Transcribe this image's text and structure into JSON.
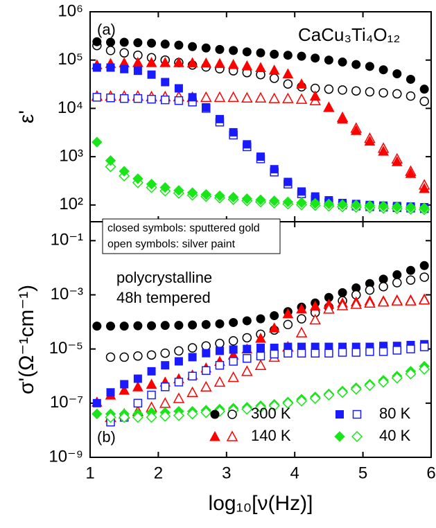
{
  "chart_data": [
    {
      "type": "scatter",
      "panel_label": "(a)",
      "annotations": [
        "CaCu₃Ti₄O₁₂"
      ],
      "ylabel": "ε'",
      "ylog": true,
      "xlim": [
        1,
        6
      ],
      "xticks": [
        1,
        2,
        3,
        4,
        5,
        6
      ],
      "ylim": [
        45,
        1000000
      ],
      "yticks": [
        {
          "value": 100,
          "label": "10²"
        },
        {
          "value": 1000,
          "label": "10³"
        },
        {
          "value": 10000,
          "label": "10⁴"
        },
        {
          "value": 100000,
          "label": "10⁵"
        },
        {
          "value": 1000000,
          "label": "10⁶"
        }
      ],
      "x": [
        1.1,
        1.3,
        1.5,
        1.7,
        1.9,
        2.1,
        2.3,
        2.5,
        2.7,
        2.9,
        3.1,
        3.3,
        3.5,
        3.7,
        3.9,
        4.1,
        4.3,
        4.5,
        4.7,
        4.9,
        5.1,
        5.3,
        5.5,
        5.7,
        5.9
      ],
      "series": [
        {
          "color": "#000000",
          "marker": "circle",
          "fill": "open",
          "values": [
            200000,
            158000,
            141000,
            126000,
            112000,
            100000,
            89000,
            79000,
            72000,
            66000,
            60000,
            55000,
            50000,
            42000,
            32000,
            28000,
            26000,
            25000,
            24000,
            23000,
            22000,
            21000,
            20000,
            18000,
            14000
          ]
        },
        {
          "color": "#000000",
          "marker": "circle",
          "fill": "closed",
          "values": [
            240000,
            234000,
            234000,
            229000,
            224000,
            214000,
            204000,
            190000,
            178000,
            166000,
            158000,
            148000,
            141000,
            132000,
            126000,
            120000,
            110000,
            100000,
            91000,
            81000,
            74000,
            63000,
            52000,
            40000,
            25000
          ]
        },
        {
          "color": "#ff0000",
          "marker": "triangle",
          "fill": "open",
          "values": [
            18000,
            18000,
            18000,
            18000,
            17500,
            17500,
            17500,
            17000,
            17000,
            17000,
            17000,
            16500,
            16500,
            16000,
            16000,
            15500,
            14500,
            10500,
            6500,
            3900,
            2400,
            1500,
            900,
            500,
            260
          ]
        },
        {
          "color": "#ff0000",
          "marker": "triangle",
          "fill": "closed",
          "values": [
            80000,
            85000,
            88000,
            89000,
            89000,
            89000,
            89000,
            88000,
            87000,
            85000,
            81000,
            76000,
            70000,
            62000,
            52000,
            32000,
            18000,
            10500,
            6000,
            3500,
            2100,
            1300,
            790,
            450,
            220
          ]
        },
        {
          "color": "#1a1aff",
          "marker": "square",
          "fill": "open",
          "values": [
            17000,
            16500,
            16000,
            16000,
            15500,
            15000,
            14500,
            13500,
            10000,
            5200,
            2800,
            1600,
            900,
            480,
            270,
            170,
            130,
            110,
            100,
            95,
            92,
            90,
            88,
            86,
            84
          ]
        },
        {
          "color": "#1a1aff",
          "marker": "square",
          "fill": "closed",
          "values": [
            70000,
            70000,
            65000,
            60000,
            50000,
            35000,
            26000,
            17000,
            10500,
            6000,
            3200,
            1800,
            1000,
            550,
            300,
            190,
            150,
            125,
            110,
            105,
            100,
            97,
            95,
            93,
            90
          ]
        },
        {
          "color": "#19e619",
          "marker": "diamond",
          "fill": "open",
          "values": [
            null,
            620,
            400,
            290,
            230,
            195,
            175,
            160,
            150,
            140,
            130,
            122,
            116,
            110,
            105,
            101,
            98,
            95,
            92,
            90,
            88,
            86,
            84,
            82,
            80
          ]
        },
        {
          "color": "#19e619",
          "marker": "diamond",
          "fill": "closed",
          "values": [
            2000,
            830,
            500,
            350,
            270,
            230,
            200,
            180,
            165,
            155,
            145,
            135,
            128,
            122,
            116,
            112,
            108,
            105,
            102,
            100,
            97,
            95,
            92,
            90,
            87
          ]
        }
      ]
    },
    {
      "type": "scatter",
      "panel_label": "(b)",
      "annotations": [
        "polycrystalline",
        "48h tempered"
      ],
      "note": [
        "closed symbols: sputtered gold",
        "open symbols: silver paint"
      ],
      "ylabel": "σ'(Ω⁻¹cm⁻¹)",
      "xlabel": "log₁₀[ν(Hz)]",
      "ylog": true,
      "legend": "lower right",
      "xlim": [
        1,
        6
      ],
      "xticks": [
        1,
        2,
        3,
        4,
        5,
        6
      ],
      "ylim": [
        1e-09,
        0.5
      ],
      "yticks": [
        {
          "value": 1e-09,
          "label": "10⁻⁹"
        },
        {
          "value": 1e-07,
          "label": "10⁻⁷"
        },
        {
          "value": 1e-05,
          "label": "10⁻⁵"
        },
        {
          "value": 0.001,
          "label": "10⁻³"
        },
        {
          "value": 0.1,
          "label": "10⁻¹"
        }
      ],
      "x": [
        1.1,
        1.3,
        1.5,
        1.7,
        1.9,
        2.1,
        2.3,
        2.5,
        2.7,
        2.9,
        3.1,
        3.3,
        3.5,
        3.7,
        3.9,
        4.1,
        4.3,
        4.5,
        4.7,
        4.9,
        5.1,
        5.3,
        5.5,
        5.7,
        5.9
      ],
      "series": [
        {
          "name": "300 K",
          "color": "#000000",
          "marker": "circle",
          "fill": "closed",
          "values": [
            7e-05,
            7e-05,
            7e-05,
            7.2e-05,
            7.2e-05,
            7.4e-05,
            7.5e-05,
            7.7e-05,
            8e-05,
            8.5e-05,
            9.5e-05,
            0.00011,
            0.00013,
            0.00017,
            0.00024,
            0.00035,
            0.0005,
            0.0008,
            0.0012,
            0.0018,
            0.0026,
            0.0038,
            0.0055,
            0.008,
            0.012
          ]
        },
        {
          "color": "#000000",
          "marker": "circle",
          "fill": "open",
          "values": [
            null,
            5e-06,
            5e-06,
            5.5e-06,
            6e-06,
            7e-06,
            8.5e-06,
            1.1e-05,
            1.3e-05,
            1.6e-05,
            2e-05,
            2.6e-05,
            3.5e-05,
            5e-05,
            8e-05,
            0.00013,
            0.00022,
            0.00035,
            0.0006,
            0.001,
            0.0015,
            0.002,
            0.0028,
            0.0035,
            0.0045
          ]
        },
        {
          "name": "140 K",
          "color": "#ff0000",
          "marker": "triangle",
          "fill": "closed",
          "values": [
            1.1e-07,
            2e-07,
            3e-07,
            4e-07,
            5e-07,
            6e-07,
            8e-07,
            1.1e-06,
            2e-06,
            3.5e-06,
            6e-06,
            1e-05,
            2.5e-05,
            6e-05,
            0.0002,
            0.0003,
            0.00038,
            0.00045,
            0.0005,
            0.00055,
            0.0006,
            0.0006,
            0.00065,
            0.00065,
            0.0007
          ]
        },
        {
          "color": "#ff0000",
          "marker": "triangle",
          "fill": "open",
          "values": [
            null,
            3e-08,
            4e-08,
            5e-08,
            7e-08,
            1e-07,
            1.5e-07,
            2.5e-07,
            4e-07,
            6e-07,
            9e-07,
            1.5e-06,
            2.5e-06,
            5e-06,
            1.2e-05,
            4e-05,
            0.00012,
            0.0003,
            0.0004,
            0.00045,
            0.0005,
            0.00055,
            0.0006,
            0.0006,
            0.00065
          ]
        },
        {
          "name": "80 K",
          "color": "#1a1aff",
          "marker": "square",
          "fill": "closed",
          "values": [
            1e-07,
            2.5e-07,
            5e-07,
            8e-07,
            1.5e-06,
            2.5e-06,
            3.5e-06,
            5e-06,
            7e-06,
            8.5e-06,
            9.5e-06,
            1e-05,
            1.1e-05,
            1.1e-05,
            1.2e-05,
            1.2e-05,
            1.2e-05,
            1.2e-05,
            1.2e-05,
            1.2e-05,
            1.2e-05,
            1.3e-05,
            1.3e-05,
            1.4e-05,
            1.5e-05
          ]
        },
        {
          "color": "#1a1aff",
          "marker": "square",
          "fill": "open",
          "values": [
            null,
            2e-08,
            3e-08,
            1e-07,
            2e-07,
            4e-07,
            6e-07,
            1e-06,
            1.6e-06,
            2.5e-06,
            3.5e-06,
            4.5e-06,
            5.5e-06,
            6.5e-06,
            7e-06,
            7e-06,
            7e-06,
            7e-06,
            7.5e-06,
            7.5e-06,
            8e-06,
            8e-06,
            9e-06,
            1e-05,
            1.2e-05
          ]
        },
        {
          "name": "40 K",
          "color": "#19e619",
          "marker": "diamond",
          "fill": "closed",
          "values": [
            4e-08,
            4e-08,
            4e-08,
            4e-08,
            4.5e-08,
            4.5e-08,
            5e-08,
            5e-08,
            5.5e-08,
            6e-08,
            6.5e-08,
            7e-08,
            8e-08,
            9e-08,
            1.1e-07,
            1.4e-07,
            1.7e-07,
            2.2e-07,
            2.8e-07,
            3.7e-07,
            5e-07,
            7e-07,
            1e-06,
            1.5e-06,
            2.3e-06
          ]
        },
        {
          "color": "#19e619",
          "marker": "diamond",
          "fill": "open",
          "values": [
            null,
            3e-08,
            3e-08,
            3e-08,
            3e-08,
            3.3e-08,
            3.5e-08,
            4e-08,
            4.5e-08,
            5e-08,
            5.5e-08,
            6e-08,
            7e-08,
            8e-08,
            1e-07,
            1.2e-07,
            1.5e-07,
            2e-07,
            2.5e-07,
            3.3e-07,
            4.5e-07,
            6e-07,
            8.5e-07,
            1.2e-06,
            1.8e-06
          ]
        }
      ]
    }
  ]
}
